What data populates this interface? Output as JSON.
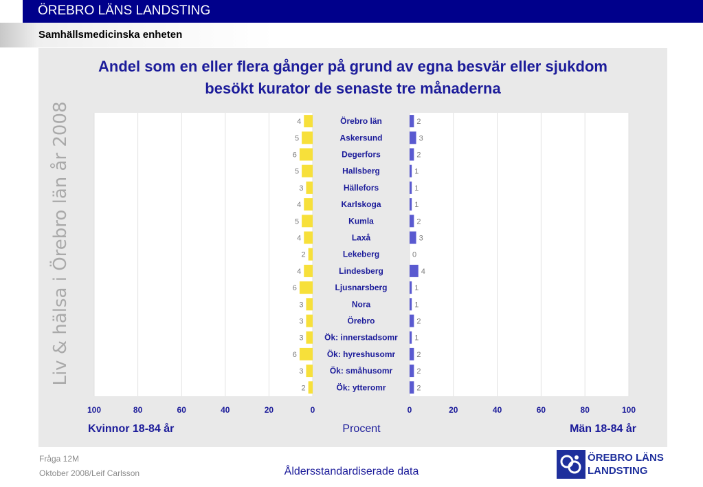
{
  "header": {
    "org_name": "ÖREBRO LÄNS LANDSTING",
    "unit_name": "Samhällsmedicinska enheten"
  },
  "side_caption": "Liv & hälsa i Örebro län år 2008",
  "chart_data": {
    "type": "bar",
    "orientation": "horizontal-butterfly",
    "title_line1": "Andel som en eller flera gånger på grund av egna besvär eller sjukdom",
    "title_line2": "besökt kurator de senaste tre månaderna",
    "categories": [
      "Örebro län",
      "Askersund",
      "Degerfors",
      "Hallsberg",
      "Hällefors",
      "Karlskoga",
      "Kumla",
      "Laxå",
      "Lekeberg",
      "Lindesberg",
      "Ljusnarsberg",
      "Nora",
      "Örebro",
      "Ök: innerstadsomr",
      "Ök: hyreshusomr",
      "Ök: småhusomr",
      "Ök: ytteromr"
    ],
    "series": [
      {
        "name": "Kvinnor 18-84 år",
        "values": [
          4,
          5,
          6,
          5,
          3,
          4,
          5,
          4,
          2,
          4,
          6,
          3,
          3,
          3,
          6,
          3,
          2
        ],
        "color": "#f7e03a"
      },
      {
        "name": "Män 18-84 år",
        "values": [
          2,
          3,
          2,
          1,
          1,
          1,
          2,
          3,
          0,
          4,
          1,
          1,
          2,
          1,
          2,
          2,
          2
        ],
        "color": "#5a5ad0"
      }
    ],
    "xlabel": "Procent",
    "left_axis_label": "Kvinnor 18-84 år",
    "right_axis_label": "Män 18-84 år",
    "left_ticks": [
      "100",
      "80",
      "60",
      "40",
      "20",
      "0"
    ],
    "right_ticks": [
      "0",
      "20",
      "40",
      "60",
      "80",
      "100"
    ],
    "xlim": [
      0,
      100
    ],
    "grid": true
  },
  "footer": {
    "question": "Fråga 12M",
    "date_author": "Oktober 2008/Leif Carlsson",
    "note": "Åldersstandardiserade data"
  },
  "logo": {
    "line1": "ÖREBRO LÄNS",
    "line2": "LANDSTING"
  }
}
